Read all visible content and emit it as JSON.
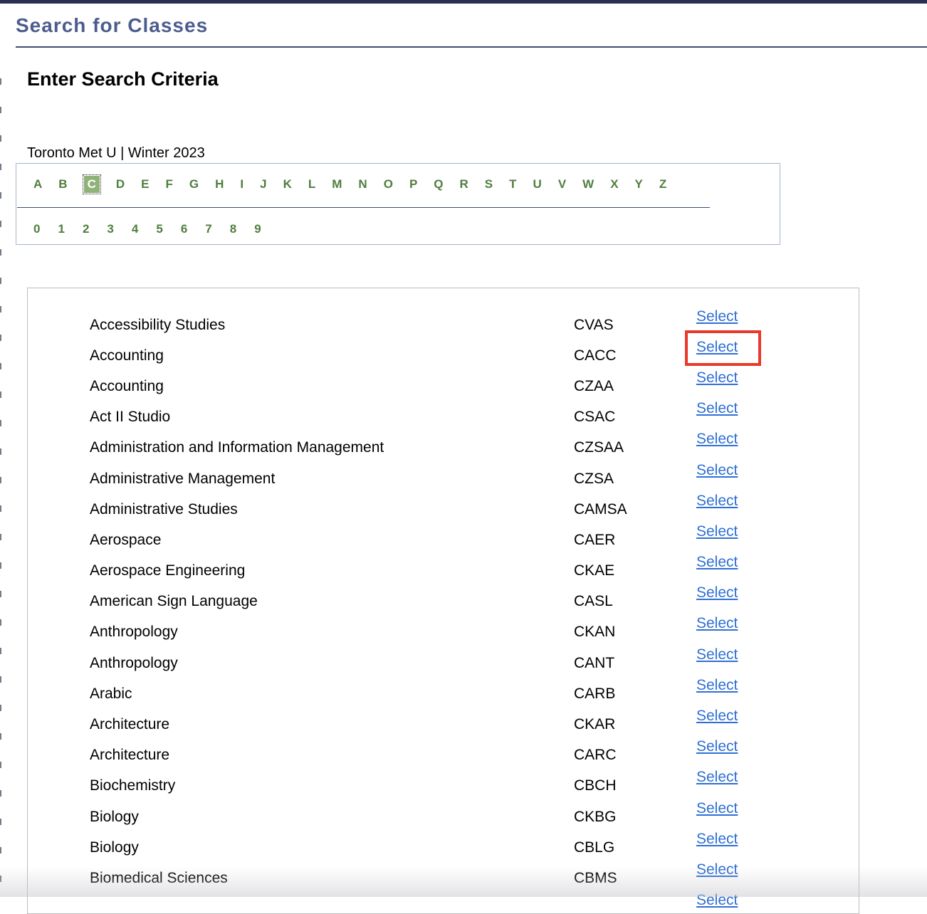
{
  "header": {
    "title": "Search for Classes"
  },
  "search": {
    "heading": "Enter Search Criteria",
    "context": "Toronto Met U | Winter 2023"
  },
  "alphabet_nav": {
    "letters": [
      "A",
      "B",
      "C",
      "D",
      "E",
      "F",
      "G",
      "H",
      "I",
      "J",
      "K",
      "L",
      "M",
      "N",
      "O",
      "P",
      "Q",
      "R",
      "S",
      "T",
      "U",
      "V",
      "W",
      "X",
      "Y",
      "Z"
    ],
    "selected_letter": "C",
    "digits": [
      "0",
      "1",
      "2",
      "3",
      "4",
      "5",
      "6",
      "7",
      "8",
      "9"
    ]
  },
  "subject_list": {
    "select_label": "Select",
    "highlighted_row": 1,
    "rows": [
      {
        "name": "Accessibility Studies",
        "code": "CVAS"
      },
      {
        "name": "Accounting",
        "code": "CACC"
      },
      {
        "name": "Accounting",
        "code": "CZAA"
      },
      {
        "name": "Act II Studio",
        "code": "CSAC"
      },
      {
        "name": "Administration and Information Management",
        "code": "CZSAA"
      },
      {
        "name": "Administrative Management",
        "code": "CZSA"
      },
      {
        "name": "Administrative Studies",
        "code": "CAMSA"
      },
      {
        "name": "Aerospace",
        "code": "CAER"
      },
      {
        "name": "Aerospace Engineering",
        "code": "CKAE"
      },
      {
        "name": "American Sign Language",
        "code": "CASL"
      },
      {
        "name": "Anthropology",
        "code": "CKAN"
      },
      {
        "name": "Anthropology",
        "code": "CANT"
      },
      {
        "name": "Arabic",
        "code": "CARB"
      },
      {
        "name": "Architecture",
        "code": "CKAR"
      },
      {
        "name": "Architecture",
        "code": "CARC"
      },
      {
        "name": "Biochemistry",
        "code": "CBCH"
      },
      {
        "name": "Biology",
        "code": "CKBG"
      },
      {
        "name": "Biology",
        "code": "CBLG"
      },
      {
        "name": "Biomedical Sciences",
        "code": "CBMS"
      },
      {
        "name": "",
        "code": ""
      }
    ]
  },
  "colors": {
    "title_blue": "#4d5c8e",
    "rule_navy": "#3d4c74",
    "letter_green": "#4f7e3e",
    "selected_letter_bg": "#8fb279",
    "link_blue": "#2f6fd4",
    "highlight_red": "#e8392b"
  }
}
